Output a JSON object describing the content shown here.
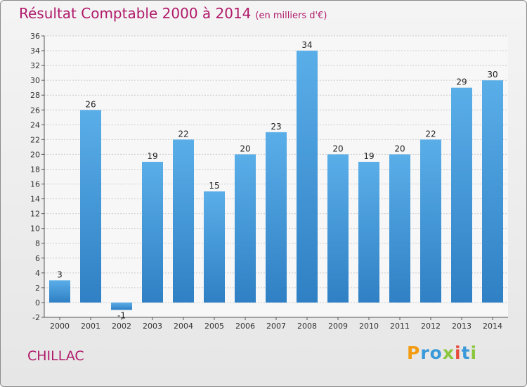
{
  "chart_data": {
    "type": "bar",
    "title": "Résultat Comptable 2000 à 2014",
    "subtitle": "(en milliers d'€)",
    "categories": [
      "2000",
      "2001",
      "2002",
      "2003",
      "2004",
      "2005",
      "2006",
      "2007",
      "2008",
      "2009",
      "2010",
      "2011",
      "2012",
      "2013",
      "2014"
    ],
    "values": [
      3,
      26,
      -1,
      19,
      22,
      15,
      20,
      23,
      34,
      20,
      19,
      20,
      22,
      29,
      30
    ],
    "ylim": [
      -2,
      36
    ],
    "yticks": [
      -2,
      0,
      2,
      4,
      6,
      8,
      10,
      12,
      14,
      16,
      18,
      20,
      22,
      24,
      26,
      28,
      30,
      32,
      34,
      36
    ],
    "xlabel": "",
    "ylabel": "",
    "grid": true,
    "bar_color_top": "#5aaee8",
    "bar_color_bottom": "#2f80c4"
  },
  "footer": {
    "commune": "CHILLAC"
  },
  "logo": {
    "letters": [
      "P",
      "r",
      "o",
      "x",
      "i",
      "t",
      "i"
    ],
    "colors": [
      "#f39c12",
      "#3a9ad9",
      "#3a9ad9",
      "#8cc63f",
      "#e74c3c",
      "#3a9ad9",
      "#8cc63f"
    ]
  },
  "colors": {
    "accent": "#b01a6a",
    "grid": "#cccccc"
  }
}
